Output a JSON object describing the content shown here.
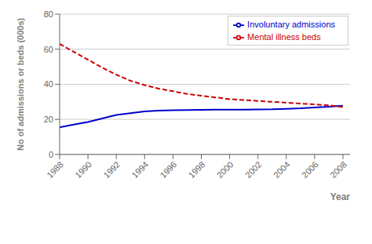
{
  "chart_data": {
    "type": "line",
    "xlabel": "Year",
    "ylabel": "No of admissions or beds (000s)",
    "x": [
      1988,
      1989,
      1990,
      1991,
      1992,
      1993,
      1994,
      1995,
      1996,
      1997,
      1998,
      1999,
      2000,
      2001,
      2002,
      2003,
      2004,
      2005,
      2006,
      2007,
      2008
    ],
    "series": [
      {
        "name": "Involuntary admissions",
        "color": "#0000CC",
        "line_style": "solid",
        "marker": "none",
        "values": [
          15.5,
          17.0,
          18.5,
          20.5,
          22.5,
          23.5,
          24.5,
          25.0,
          25.2,
          25.3,
          25.4,
          25.5,
          25.5,
          25.5,
          25.6,
          25.7,
          26.0,
          26.3,
          26.8,
          27.2,
          27.8
        ]
      },
      {
        "name": "Mental illness beds",
        "color": "#CC0000",
        "line_style": "dashed",
        "marker": "none",
        "values": [
          63.0,
          58.5,
          54.0,
          49.5,
          45.5,
          42.0,
          39.5,
          37.5,
          36.0,
          34.5,
          33.5,
          32.5,
          31.5,
          31.0,
          30.5,
          30.0,
          29.5,
          29.0,
          28.5,
          28.0,
          27.0
        ]
      }
    ],
    "xlim": [
      1988,
      2008.5
    ],
    "xticks": [
      1988,
      1990,
      1992,
      1994,
      1996,
      1998,
      2000,
      2002,
      2004,
      2006,
      2008
    ],
    "ylim": [
      0,
      80
    ],
    "yticks": [
      0,
      20,
      40,
      60,
      80
    ],
    "grid": true,
    "legend": "upper right"
  }
}
